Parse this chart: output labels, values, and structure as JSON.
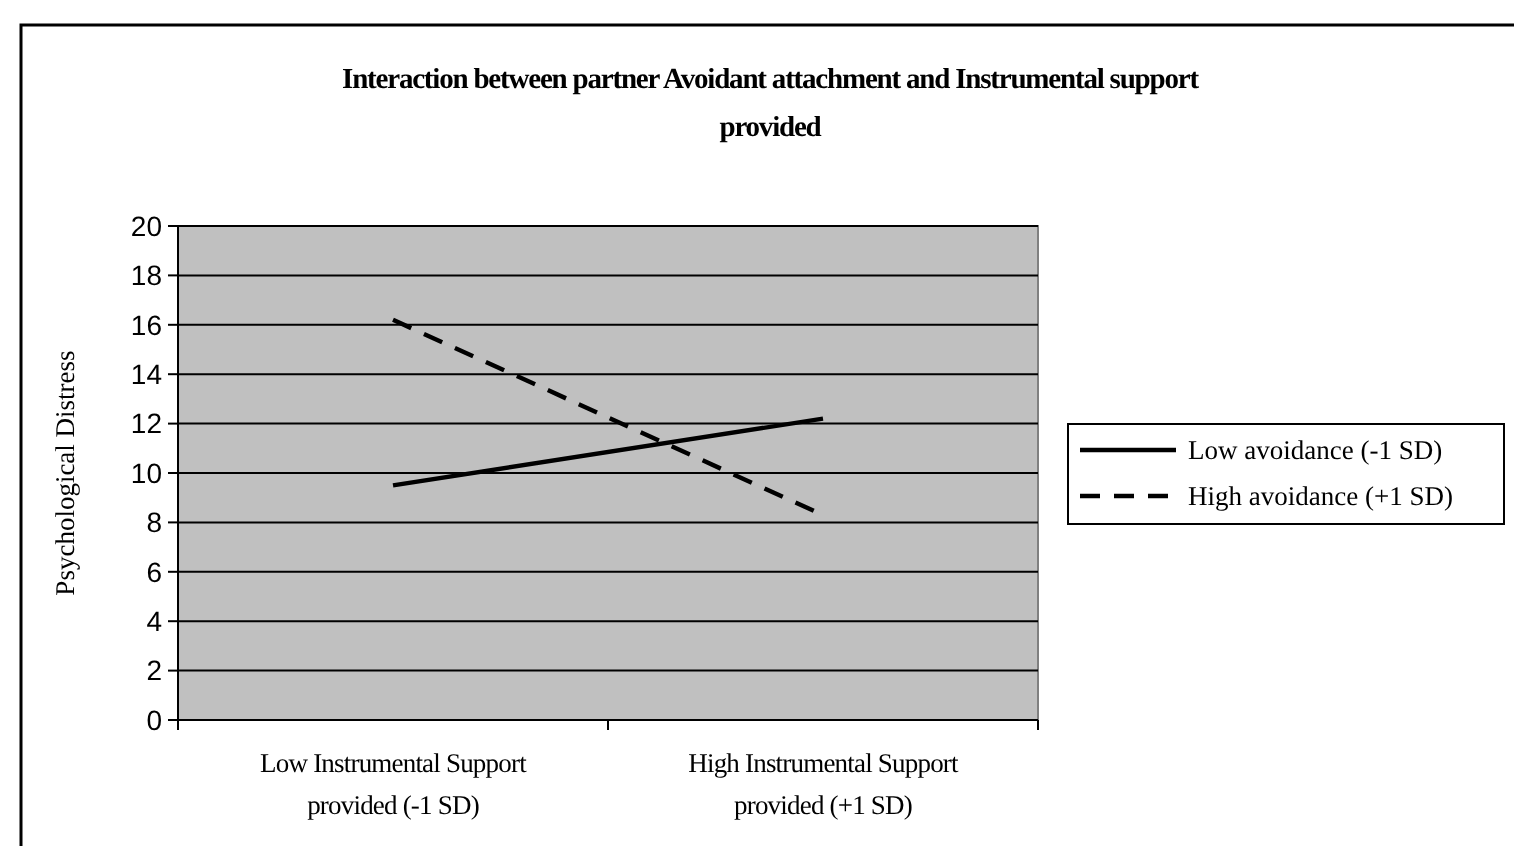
{
  "chart_data": {
    "type": "line",
    "title": "Interaction between partner Avoidant attachment and Instrumental support provided",
    "ylabel": "Psychological Distress",
    "categories": [
      "Low Instrumental Support provided (-1 SD)",
      "High Instrumental Support provided (+1 SD)"
    ],
    "series": [
      {
        "name": "Low avoidance (-1 SD)",
        "color": "#000000",
        "line_style": "solid",
        "values": [
          9.5,
          12.2
        ]
      },
      {
        "name": "High avoidance (+1 SD)",
        "color": "#000000",
        "line_style": "dashed",
        "values": [
          16.2,
          8.3
        ]
      }
    ],
    "ylim": [
      0,
      20
    ],
    "yticks": [
      0,
      2,
      4,
      6,
      8,
      10,
      12,
      14,
      16,
      18,
      20
    ],
    "grid": "y",
    "legend": "right",
    "marker": "none"
  }
}
